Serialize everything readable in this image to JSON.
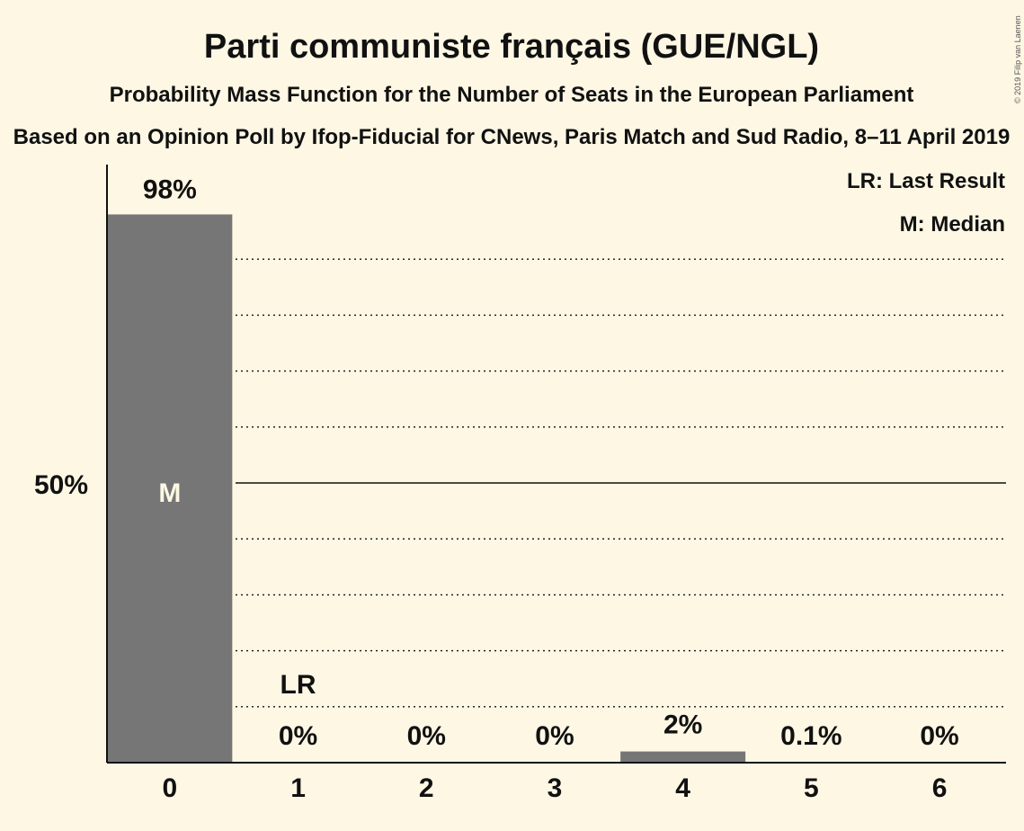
{
  "chart_data": {
    "type": "bar",
    "title": "Parti communiste français (GUE/NGL)",
    "subtitle": "Probability Mass Function for the Number of Seats in the European Parliament",
    "subsubtitle": "Based on an Opinion Poll by Ifop-Fiducial for CNews, Paris Match and Sud Radio, 8–11 April 2019",
    "categories": [
      "0",
      "1",
      "2",
      "3",
      "4",
      "5",
      "6"
    ],
    "values": [
      98,
      0,
      0,
      0,
      2,
      0.1,
      0
    ],
    "value_labels": [
      "98%",
      "0%",
      "0%",
      "0%",
      "2%",
      "0.1%",
      "0%"
    ],
    "ylim": [
      0,
      100
    ],
    "ytick_label": "50%",
    "median_category": "0",
    "median_marker": "M",
    "last_result_category": "1",
    "last_result_marker": "LR",
    "legend": [
      "LR: Last Result",
      "M: Median"
    ],
    "legend_position": "top-right",
    "copyright": "© 2019 Filip van Laenen",
    "colors": {
      "background": "#fdf7e4",
      "bar": "#767676",
      "text": "#111111",
      "median_text": "#fdf7e4"
    }
  }
}
